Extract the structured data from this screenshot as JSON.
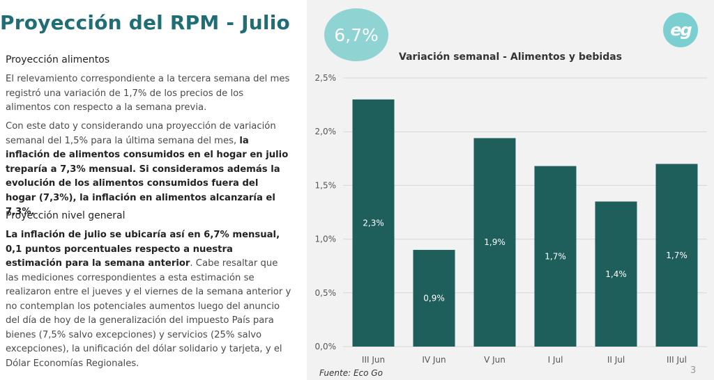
{
  "title": "Proyección del RPM - Julio",
  "section1": {
    "heading": "Proyección alimentos",
    "p1": "El relevamiento correspondiente a la tercera semana del mes registró una variación de 1,7% de los precios de los alimentos con respecto a la semana previa.",
    "p2_normal": "Con este dato y considerando una proyección de variación semanal del 1,5% para la última semana del mes, ",
    "p2_bold": "la inflación de alimentos consumidos en el hogar en julio treparía a 7,3% mensual. Si consideramos además la evolución de los alimentos consumidos fuera del hogar (7,3%), la inflación en alimentos alcanzaría el 7,3%."
  },
  "section2": {
    "heading": "Proyección nivel general",
    "p_bold": "La inflación de julio se ubicaría así en 6,7% mensual, 0,1 puntos porcentuales respecto a nuestra estimación para la semana anterior",
    "p_normal": ". Cabe resaltar que las mediciones correspondientes a esta estimación se realizaron entre el jueves y el viernes de la semana anterior y no contemplan los potenciales aumentos luego del anuncio del día de hoy de la generalización del impuesto País para bienes (7,5% salvo excepciones) y servicios (25% salvo excepciones), la unificación del dólar solidario y tarjeta, y el Dólar Economías Regionales."
  },
  "badge": "6,7%",
  "logo_text": "eg",
  "source": "Fuente: Eco Go",
  "page_number": "3",
  "colors": {
    "bar": "#1e5f5c",
    "badge": "#8fd3d3",
    "title": "#1f6e76"
  },
  "chart_data": {
    "type": "bar",
    "title": "Variación semanal - Alimentos y bebidas",
    "xlabel": "",
    "ylabel": "",
    "categories": [
      "III Jun",
      "IV Jun",
      "V Jun",
      "I Jul",
      "II Jul",
      "III Jul"
    ],
    "values": [
      2.3,
      0.9,
      1.94,
      1.68,
      1.35,
      1.7
    ],
    "data_labels": [
      "2,3%",
      "0,9%",
      "1,9%",
      "1,7%",
      "1,4%",
      "1,7%"
    ],
    "ylim": [
      0,
      2.5
    ],
    "yticks": [
      0,
      0.5,
      1.0,
      1.5,
      2.0,
      2.5
    ],
    "ytick_labels": [
      "0,0%",
      "0,5%",
      "1,0%",
      "1,5%",
      "2,0%",
      "2,5%"
    ],
    "grid": true,
    "legend": "none"
  }
}
